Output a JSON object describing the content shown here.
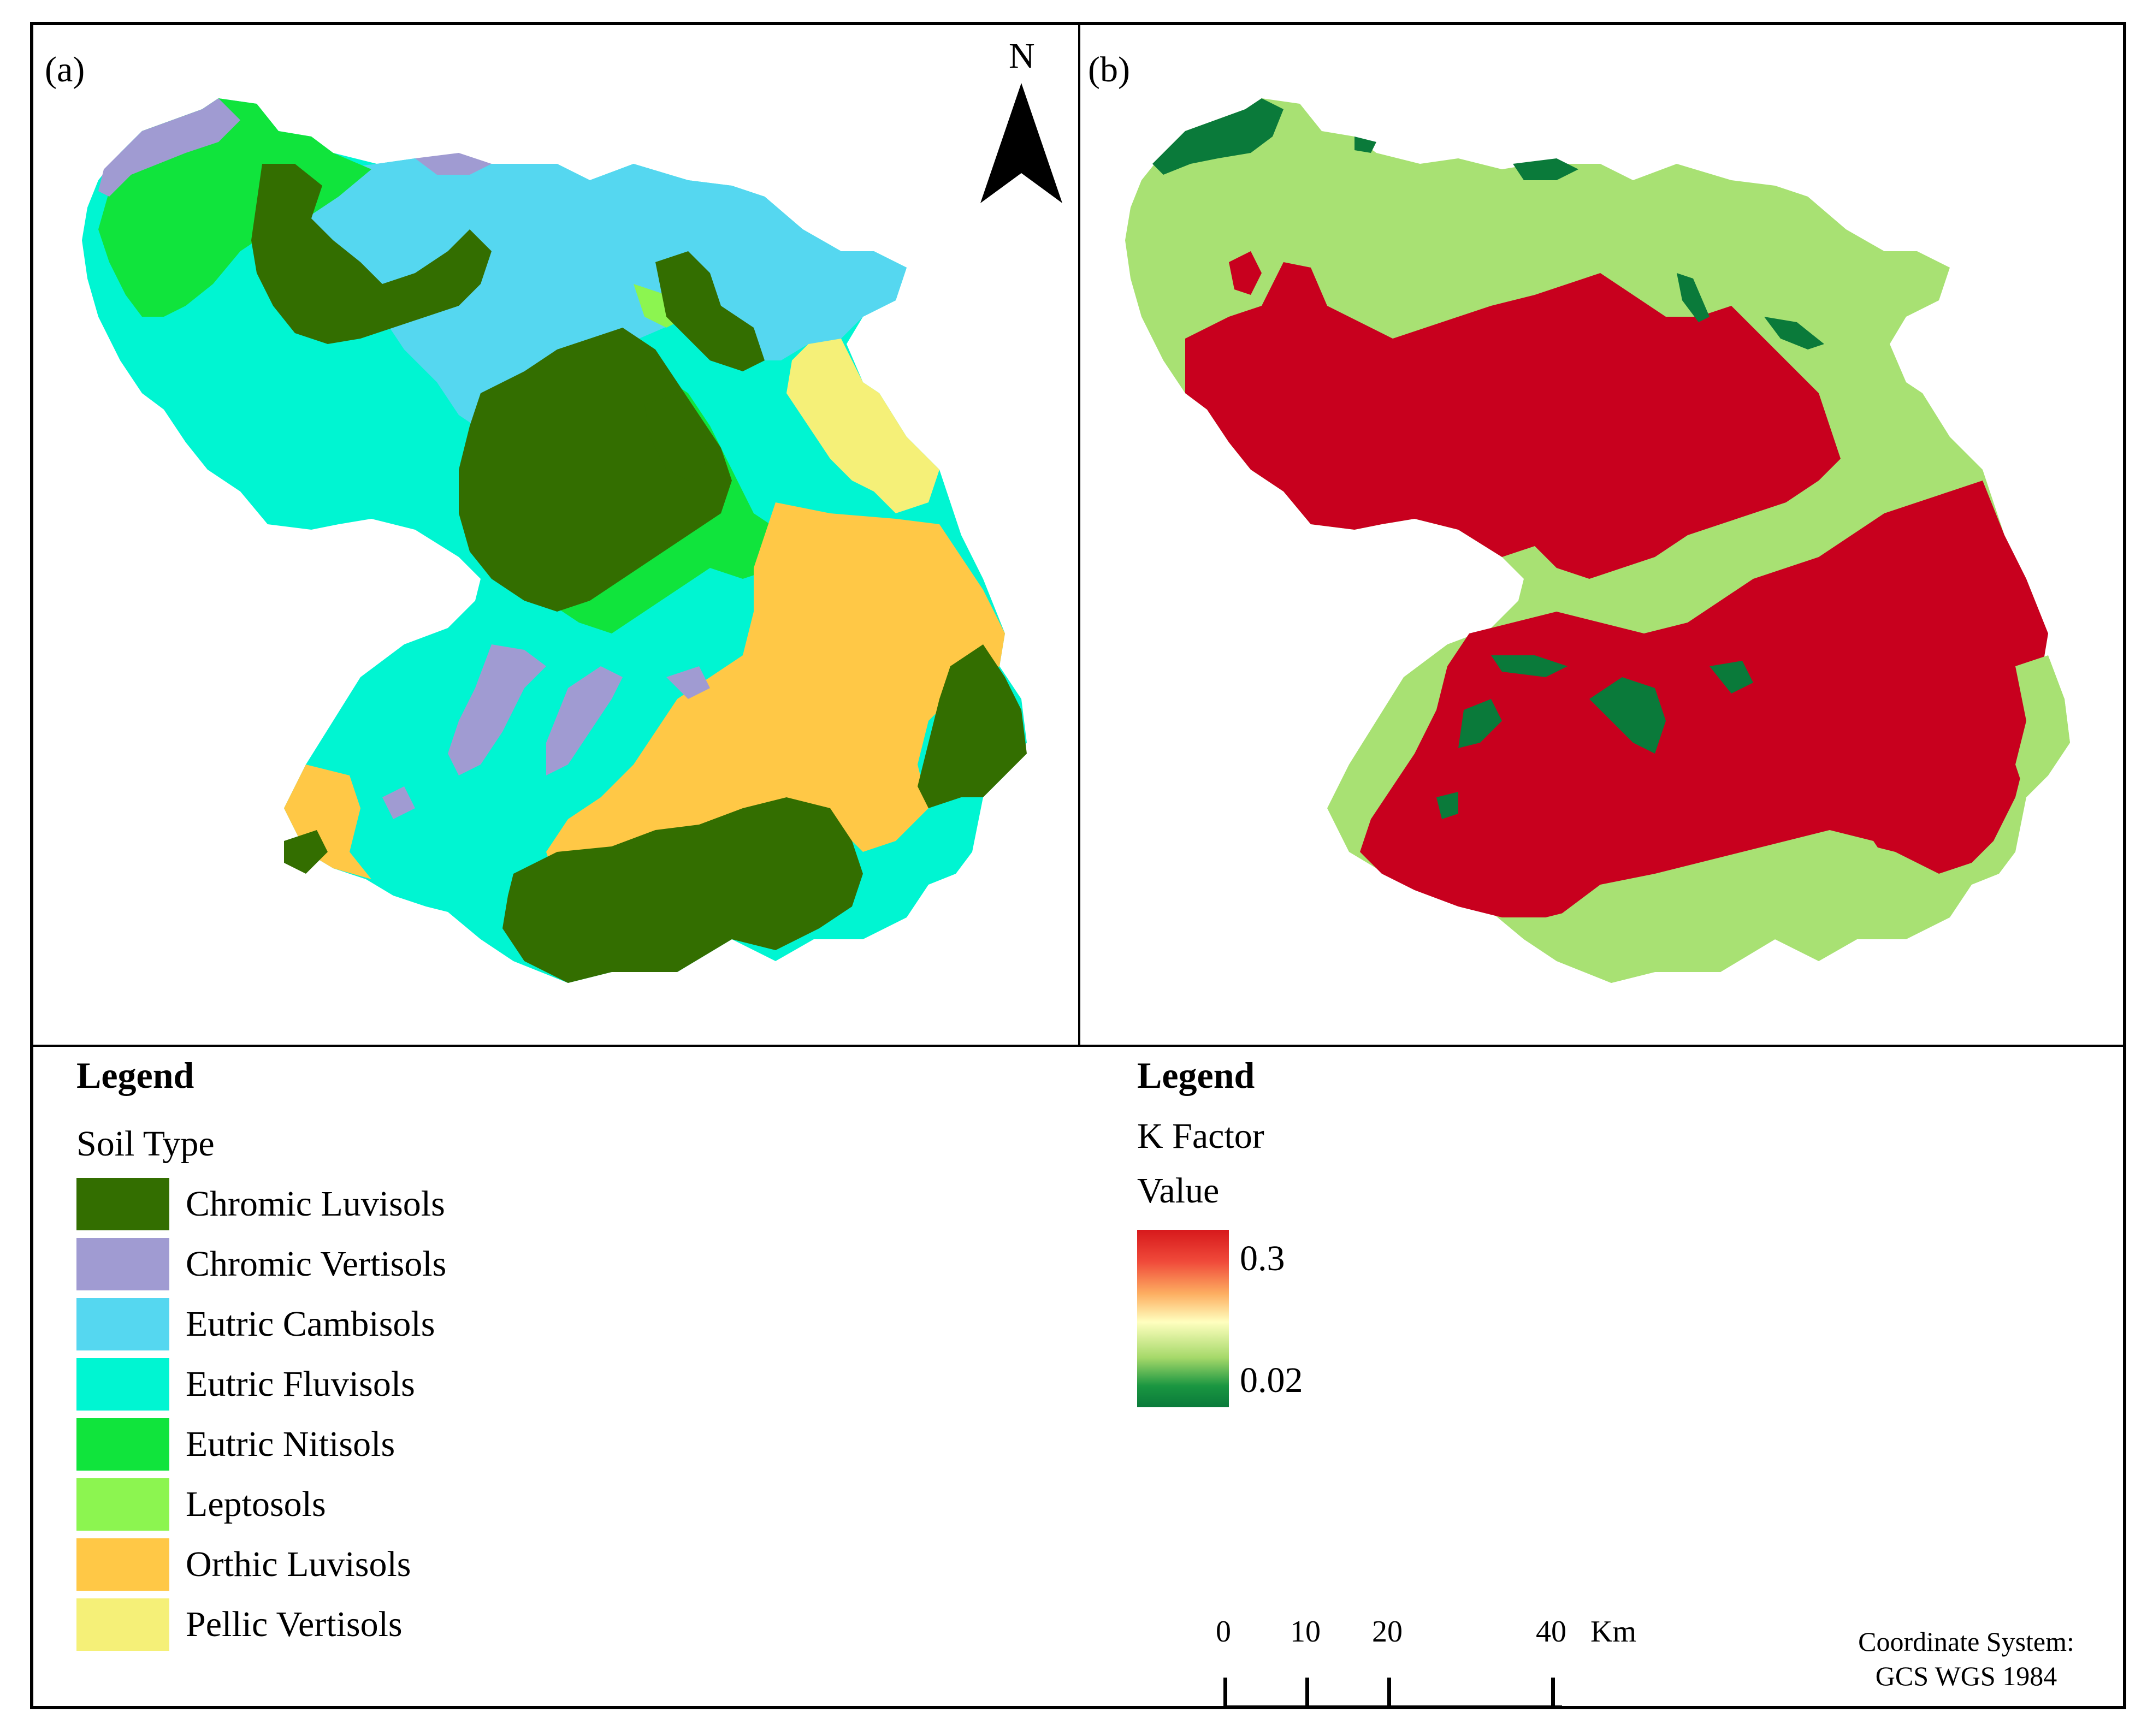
{
  "panels": {
    "a_label": "(a)",
    "b_label": "(b)"
  },
  "north_arrow": {
    "label": "N"
  },
  "soil_legend": {
    "title": "Legend",
    "subtitle": "Soil Type",
    "items": [
      {
        "label": "Chromic Luvisols",
        "color": "#336e00"
      },
      {
        "label": "Chromic Vertisols",
        "color": "#a09bd2"
      },
      {
        "label": "Eutric Cambisols",
        "color": "#55d7f0"
      },
      {
        "label": "Eutric Fluvisols",
        "color": "#00f5d2"
      },
      {
        "label": "Eutric Nitisols",
        "color": "#10e43c"
      },
      {
        "label": "Leptosols",
        "color": "#8cf550"
      },
      {
        "label": "Orthic Luvisols",
        "color": "#ffc846"
      },
      {
        "label": "Pellic Vertisols",
        "color": "#f5f078"
      }
    ]
  },
  "k_legend": {
    "title": "Legend",
    "subtitle1": "K Factor",
    "subtitle2": "Value",
    "high": "0.3",
    "low": "0.02",
    "colors": {
      "high": "#c8001e",
      "mid": "#a8e173",
      "low": "#0a7a3a"
    }
  },
  "scale_bar": {
    "ticks": [
      "0",
      "10",
      "20",
      "40"
    ],
    "unit": "Km"
  },
  "coordinate_system": {
    "line1": "Coordinate System:",
    "line2": "GCS WGS 1984"
  }
}
